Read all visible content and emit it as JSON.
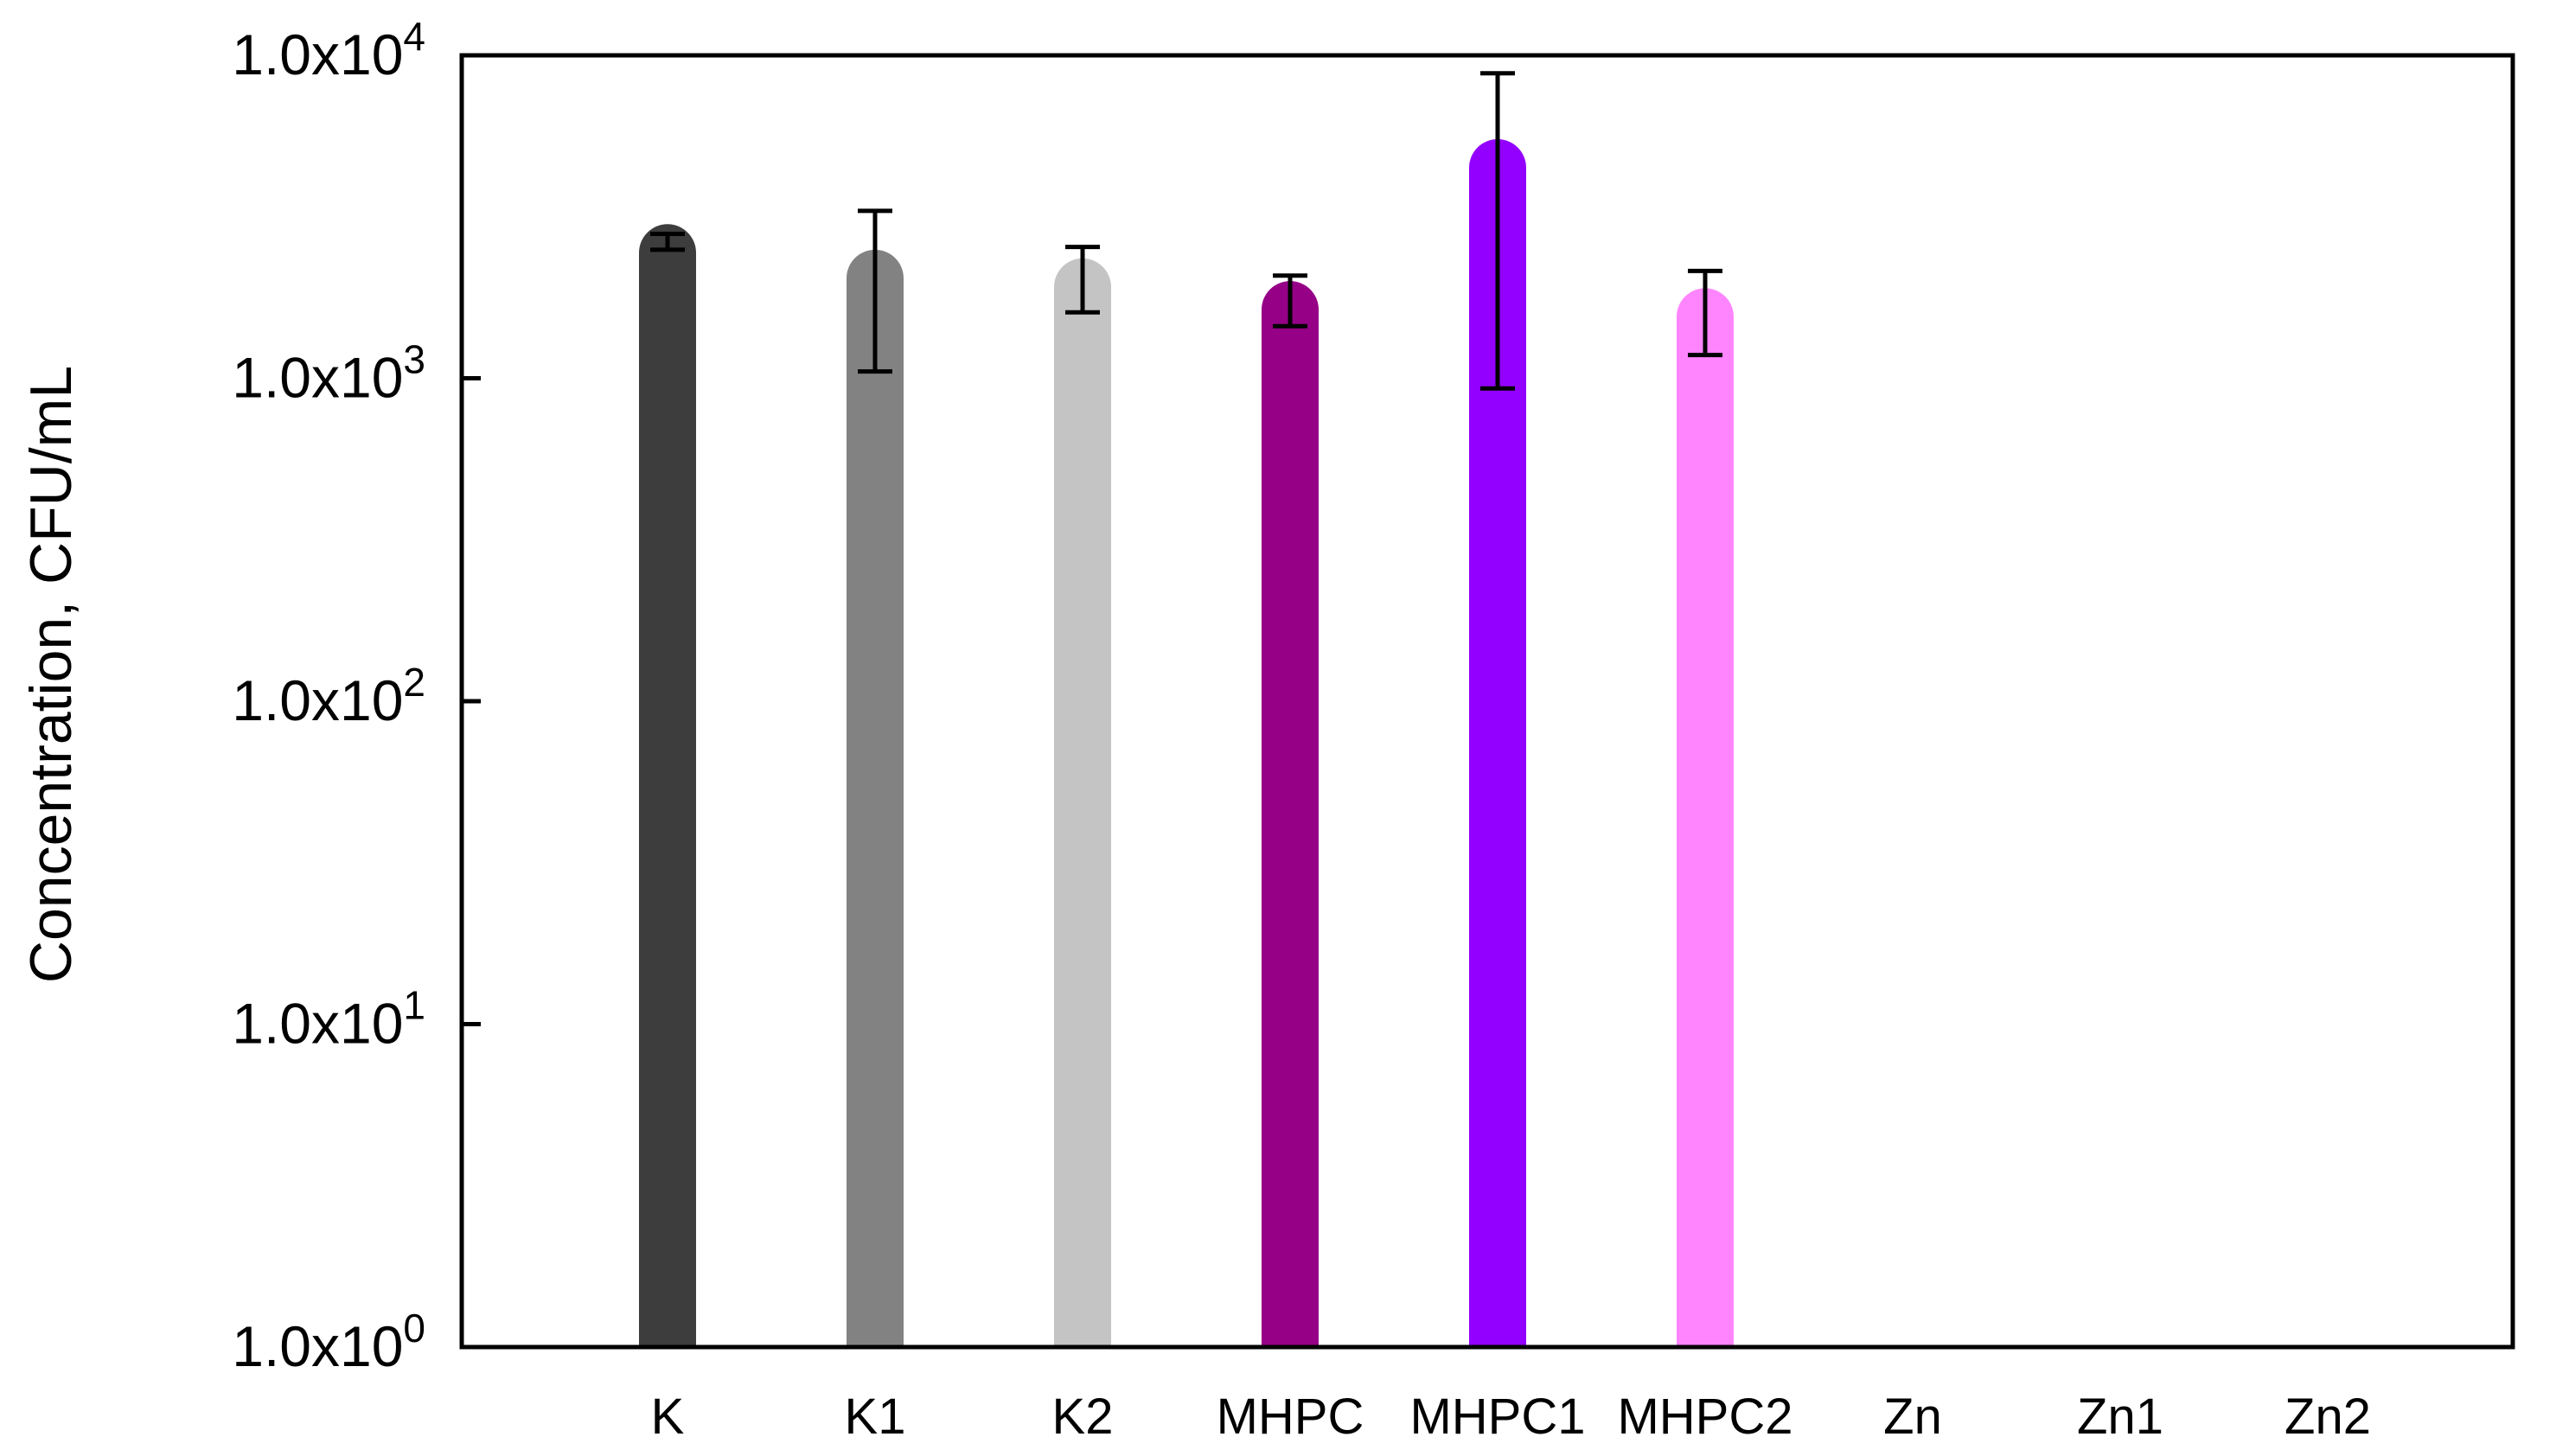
{
  "chart_data": {
    "type": "bar",
    "title": "",
    "xlabel": "",
    "ylabel": "Concentration, CFU/mL",
    "yscale": "log",
    "ylim": [
      1,
      10000
    ],
    "y_ticks": [
      {
        "value": 1,
        "mantissa": "1.0x10",
        "exponent": "0"
      },
      {
        "value": 10,
        "mantissa": "1.0x10",
        "exponent": "1"
      },
      {
        "value": 100,
        "mantissa": "1.0x10",
        "exponent": "2"
      },
      {
        "value": 1000,
        "mantissa": "1.0x10",
        "exponent": "3"
      },
      {
        "value": 10000,
        "mantissa": "1.0x10",
        "exponent": "4"
      }
    ],
    "grid": false,
    "legend": "none",
    "categories": [
      "K",
      "K1",
      "K2",
      "MHPC",
      "MHPC1",
      "MHPC2",
      "Zn",
      "Zn1",
      "Zn2"
    ],
    "values": [
      3000,
      2500,
      2350,
      2000,
      5500,
      1900,
      0,
      0,
      0
    ],
    "error_low": [
      2500,
      1050,
      1600,
      1450,
      930,
      1180,
      null,
      null,
      null
    ],
    "error_high": [
      2800,
      3300,
      2550,
      2080,
      8800,
      2150,
      null,
      null,
      null
    ],
    "colors": [
      "#3d3d3d",
      "#828282",
      "#c4c4c4",
      "#960087",
      "#9300ff",
      "#ff85ff",
      "#ffffff",
      "#ffffff",
      "#ffffff"
    ]
  }
}
